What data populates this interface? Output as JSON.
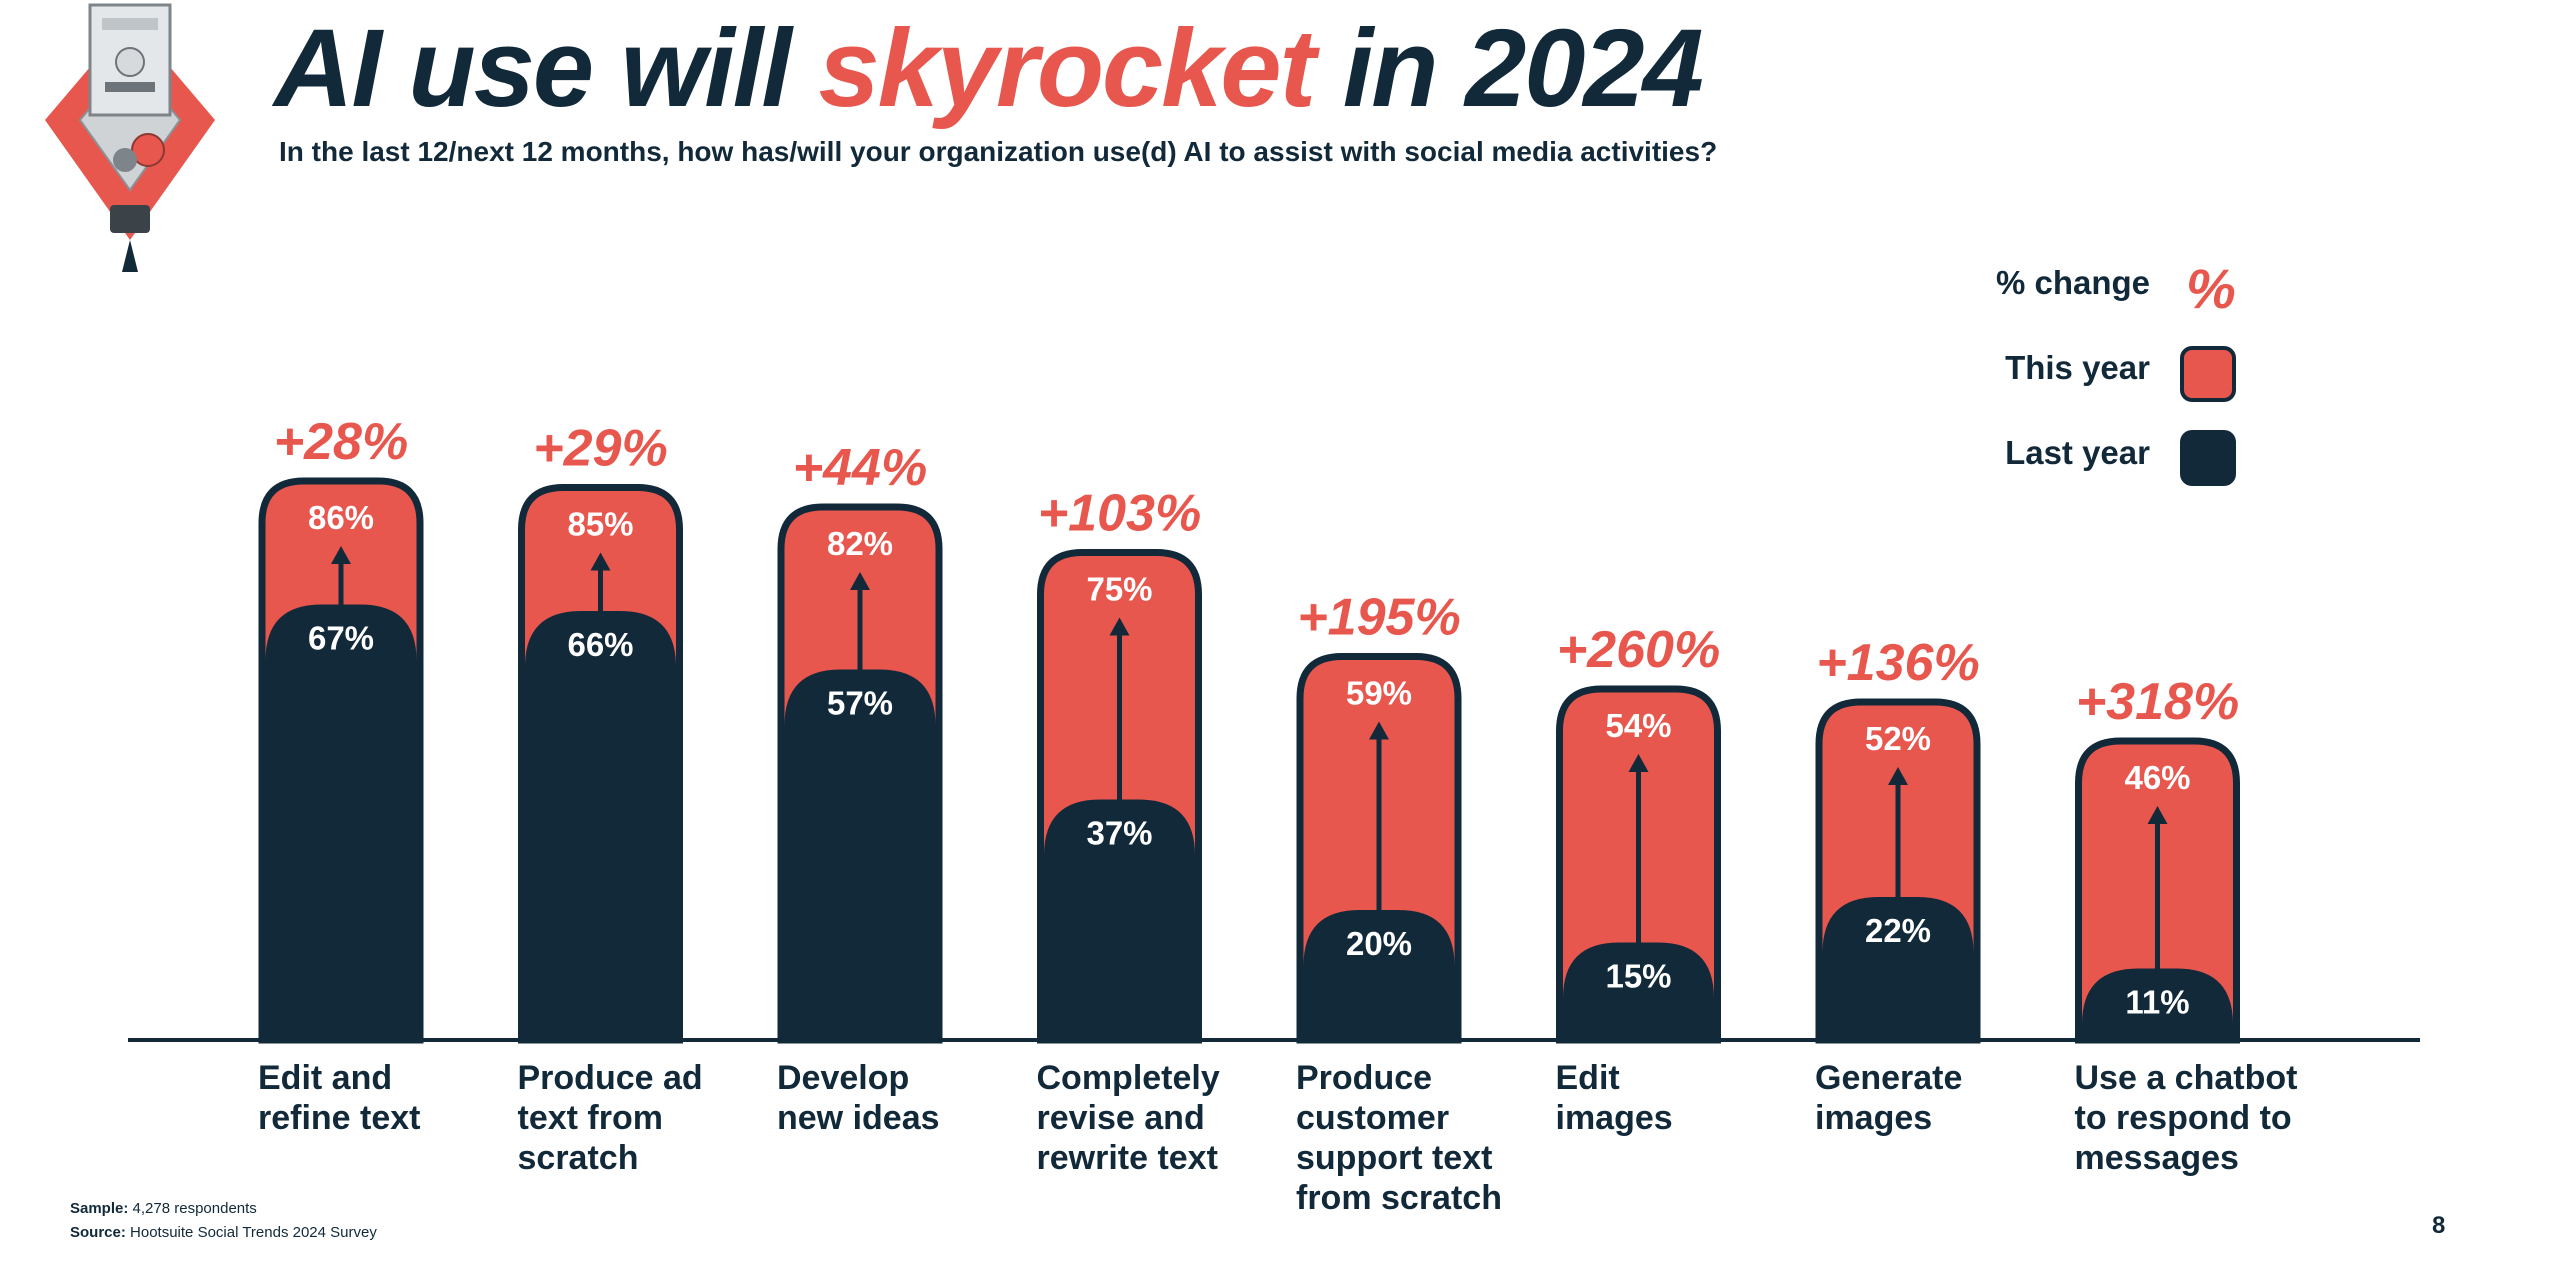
{
  "title": {
    "prefix": "AI use will ",
    "accent": "skyrocket",
    "suffix": " in 2024"
  },
  "subtitle": "In the last 12/next 12 months, how has/will your organization use(d) AI to assist with social media activities?",
  "legend": {
    "change_label": "% change",
    "change_symbol": "%",
    "this_year_label": "This year",
    "last_year_label": "Last year"
  },
  "colors": {
    "this_year": "#e8574e",
    "last_year": "#12293a",
    "text": "#12293a"
  },
  "chart_data": {
    "type": "bar",
    "categories": [
      [
        "Edit and",
        "refine text"
      ],
      [
        "Produce ad",
        "text from",
        "scratch"
      ],
      [
        "Develop",
        "new ideas"
      ],
      [
        "Completely",
        "revise and",
        "rewrite text"
      ],
      [
        "Produce",
        "customer",
        "support text",
        "from scratch"
      ],
      [
        "Edit",
        "images"
      ],
      [
        "Generate",
        "images"
      ],
      [
        "Use a chatbot",
        "to respond to",
        "messages"
      ]
    ],
    "series": [
      {
        "name": "This year",
        "values": [
          86,
          85,
          82,
          75,
          59,
          54,
          52,
          46
        ],
        "labels": [
          "86%",
          "85%",
          "82%",
          "75%",
          "59%",
          "54%",
          "52%",
          "46%"
        ]
      },
      {
        "name": "Last year",
        "values": [
          67,
          66,
          57,
          37,
          20,
          15,
          22,
          11
        ],
        "labels": [
          "67%",
          "66%",
          "57%",
          "37%",
          "20%",
          "15%",
          "22%",
          "11%"
        ]
      }
    ],
    "change": [
      "+28%",
      "+29%",
      "+44%",
      "+103%",
      "+195%",
      "+260%",
      "+136%",
      "+318%"
    ],
    "ylim": [
      0,
      100
    ],
    "grid": false,
    "legend_position": "top-right"
  },
  "footnote": {
    "sample_label": "Sample:",
    "sample_text": " 4,278 respondents",
    "source_label": "Source:",
    "source_text": " Hootsuite Social Trends 2024 Survey"
  },
  "page_number": "8"
}
